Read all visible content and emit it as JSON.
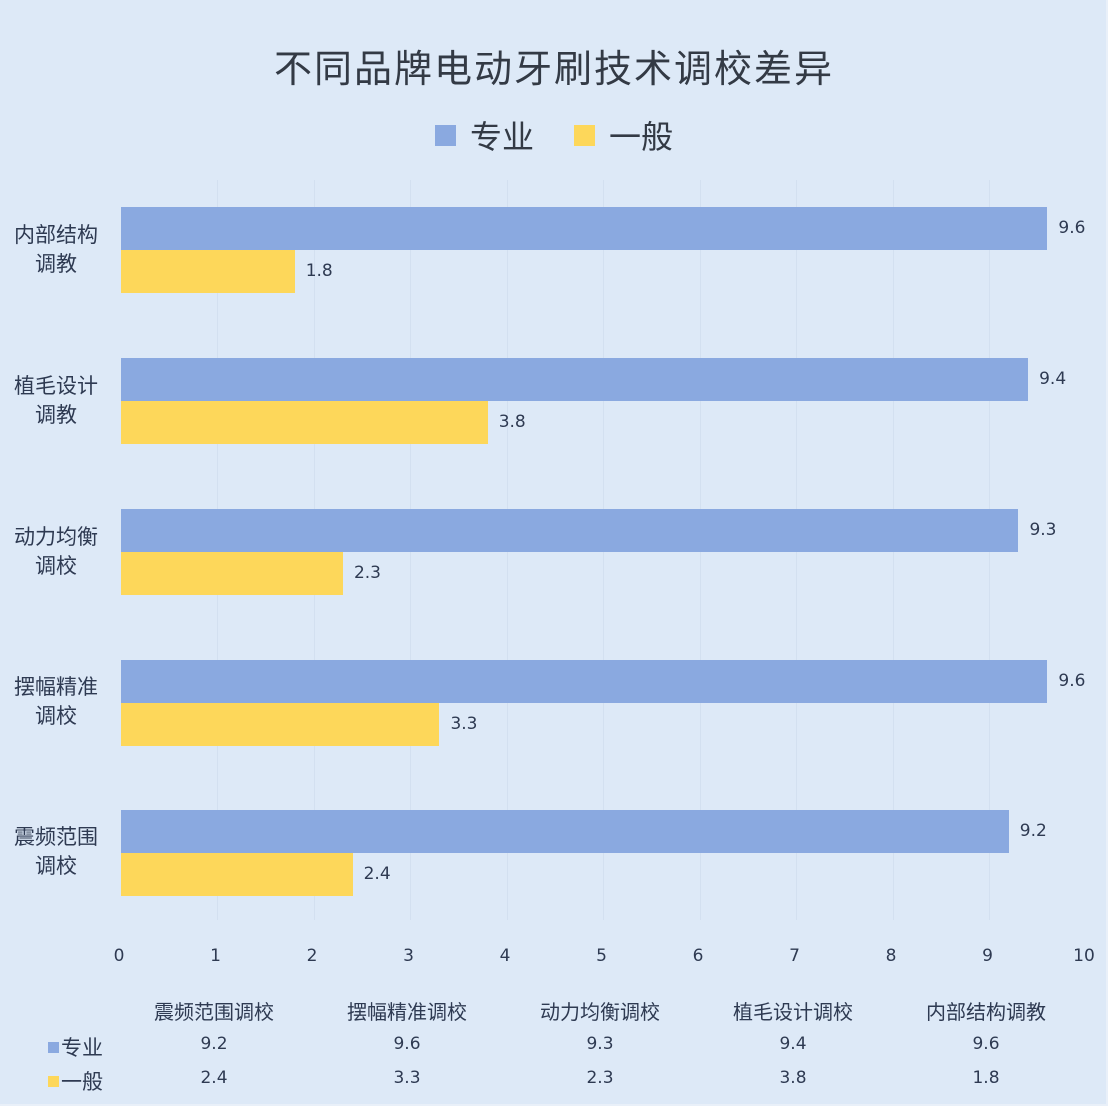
{
  "chart_data": {
    "type": "bar",
    "orientation": "horizontal",
    "title": "不同品牌电动牙刷技术调校差异",
    "categories": [
      "内部结构调教",
      "植毛设计调教",
      "动力均衡调校",
      "摆幅精准调校",
      "震频范围调校"
    ],
    "category_labels_wrapped": [
      [
        "内部结构",
        "调教"
      ],
      [
        "植毛设计",
        "调教"
      ],
      [
        "动力均衡",
        "调校"
      ],
      [
        "摆幅精准",
        "调校"
      ],
      [
        "震频范围",
        "调校"
      ]
    ],
    "series": [
      {
        "name": "专业",
        "color": "#8aa9e0",
        "values": [
          9.6,
          9.4,
          9.3,
          9.6,
          9.2
        ]
      },
      {
        "name": "一般",
        "color": "#fdd75a",
        "values": [
          1.8,
          3.8,
          2.3,
          3.3,
          2.4
        ]
      }
    ],
    "xlabel": "",
    "ylabel": "",
    "xlim": [
      0,
      10
    ],
    "x_ticks": [
      "0",
      "1",
      "2",
      "3",
      "4",
      "5",
      "6",
      "7",
      "8",
      "9",
      "10"
    ],
    "grid": "vertical, faint",
    "legend_position": "top",
    "data_labels": true,
    "data_table": {
      "columns": [
        "震频范围调校",
        "摆幅精准调校",
        "动力均衡调校",
        "植毛设计调校",
        "内部结构调教"
      ],
      "rows": [
        {
          "series": "专业",
          "values": [
            "9.2",
            "9.6",
            "9.3",
            "9.4",
            "9.6"
          ]
        },
        {
          "series": "一般",
          "values": [
            "2.4",
            "3.3",
            "2.3",
            "3.8",
            "1.8"
          ]
        }
      ]
    }
  },
  "legend": [
    {
      "label": "专业",
      "color": "#8aa9e0"
    },
    {
      "label": "一般",
      "color": "#fdd75a"
    }
  ],
  "colors": {
    "background": "#dde9f7",
    "text": "#2e3a52"
  }
}
